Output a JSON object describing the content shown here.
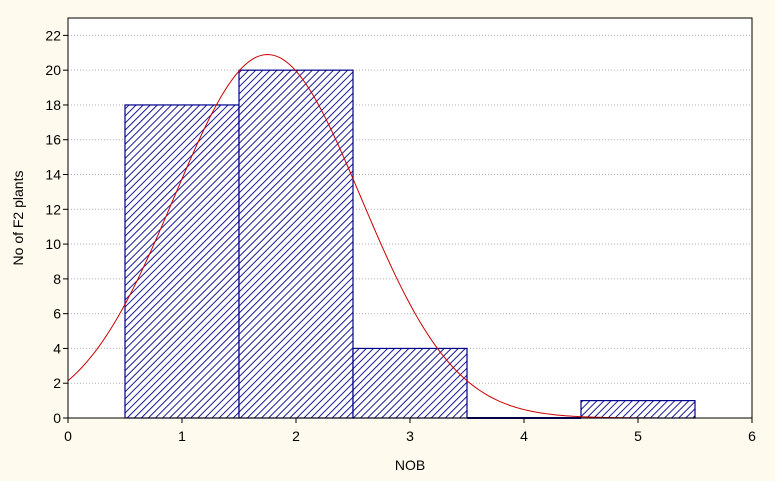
{
  "chart_data": {
    "type": "bar",
    "title": "",
    "xlabel": "NOB",
    "ylabel": "No of F2 plants",
    "xlim": [
      0,
      6
    ],
    "ylim": [
      0,
      23
    ],
    "x_ticks": [
      0,
      1,
      2,
      3,
      4,
      5,
      6
    ],
    "y_ticks": [
      0,
      2,
      4,
      6,
      8,
      10,
      12,
      14,
      16,
      18,
      20,
      22
    ],
    "grid": "horizontal dotted",
    "bins": [
      {
        "from": 0.5,
        "to": 1.5,
        "value": 18
      },
      {
        "from": 1.5,
        "to": 2.5,
        "value": 20
      },
      {
        "from": 2.5,
        "to": 3.5,
        "value": 4
      },
      {
        "from": 3.5,
        "to": 4.5,
        "value": 0
      },
      {
        "from": 4.5,
        "to": 5.5,
        "value": 1
      }
    ],
    "fitted_curve": {
      "type": "normal",
      "peak_x": 1.75,
      "peak_y": 20.9,
      "sigma": 0.82,
      "color": "#cc0000"
    },
    "bar_color": "#00008b",
    "background": "#fffaee",
    "plot_background": "#ffffff"
  }
}
